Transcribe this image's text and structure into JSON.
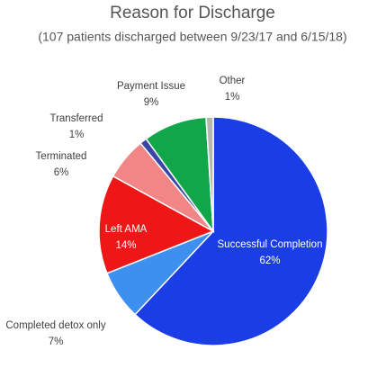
{
  "chart_data": {
    "type": "pie",
    "title": "Reason for Discharge",
    "subtitle": "(107 patients discharged between 9/23/17 and 6/15/18)",
    "categories": [
      "Successful Completion",
      "Completed detox only",
      "Left AMA",
      "Terminated",
      "Transferred",
      "Payment Issue",
      "Other"
    ],
    "values": [
      62,
      7,
      14,
      6,
      1,
      9,
      1
    ],
    "value_labels": [
      "62%",
      "7%",
      "14%",
      "6%",
      "1%",
      "9%",
      "1%"
    ],
    "colors": [
      "#1a3de6",
      "#3d8ff0",
      "#ee1616",
      "#f28585",
      "#3846a8",
      "#12a64a",
      "#b5b5b5"
    ]
  }
}
